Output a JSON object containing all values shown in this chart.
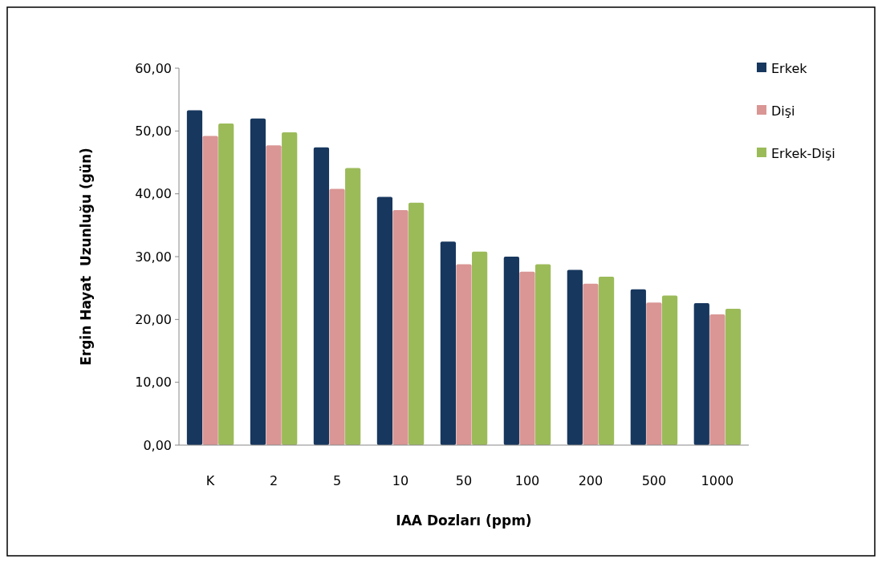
{
  "chart_data": {
    "type": "bar",
    "xlabel": "IAA Dozları (ppm)",
    "ylabel": "Ergin Hayat  Uzunluğu (gün)",
    "categories": [
      "K",
      "2",
      "5",
      "10",
      "50",
      "100",
      "200",
      "500",
      "1000"
    ],
    "series": [
      {
        "name": "Erkek",
        "color": "#17375e",
        "values": [
          53.3,
          52.0,
          47.4,
          39.5,
          32.4,
          30.0,
          27.9,
          24.8,
          22.6
        ]
      },
      {
        "name": "Dişi",
        "color": "#d99694",
        "values": [
          49.2,
          47.7,
          40.8,
          37.4,
          28.8,
          27.6,
          25.7,
          22.7,
          20.8
        ]
      },
      {
        "name": "Erkek-Dişi",
        "color": "#9bbb59",
        "values": [
          51.2,
          49.8,
          44.1,
          38.6,
          30.8,
          28.8,
          26.8,
          23.8,
          21.7
        ]
      }
    ],
    "ylim": [
      0,
      60
    ],
    "yticks": [
      {
        "value": 0,
        "label": "0,00"
      },
      {
        "value": 10,
        "label": "10,00"
      },
      {
        "value": 20,
        "label": "20,00"
      },
      {
        "value": 30,
        "label": "30,00"
      },
      {
        "value": 40,
        "label": "40,00"
      },
      {
        "value": 50,
        "label": "50,00"
      },
      {
        "value": 60,
        "label": "60,00"
      }
    ],
    "legend": "top right"
  }
}
